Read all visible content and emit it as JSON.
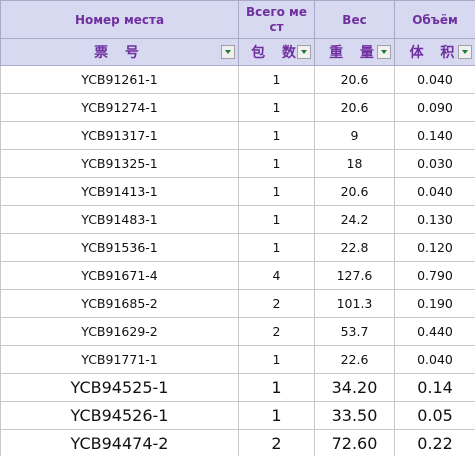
{
  "header": {
    "row1": [
      "Номер места",
      "Всего мест",
      "Вес",
      "Объём"
    ],
    "row2": [
      "票 号",
      "包 数",
      "重 量",
      "体 积"
    ]
  },
  "table": {
    "rows": [
      [
        "YCB91261-1",
        "1",
        "20.6",
        "0.040"
      ],
      [
        "YCB91274-1",
        "1",
        "20.6",
        "0.090"
      ],
      [
        "YCB91317-1",
        "1",
        "9",
        "0.140"
      ],
      [
        "YCB91325-1",
        "1",
        "18",
        "0.030"
      ],
      [
        "YCB91413-1",
        "1",
        "20.6",
        "0.040"
      ],
      [
        "YCB91483-1",
        "1",
        "24.2",
        "0.130"
      ],
      [
        "YCB91536-1",
        "1",
        "22.8",
        "0.120"
      ],
      [
        "YCB91671-4",
        "4",
        "127.6",
        "0.790"
      ],
      [
        "YCB91685-2",
        "2",
        "101.3",
        "0.190"
      ],
      [
        "YCB91629-2",
        "2",
        "53.7",
        "0.440"
      ],
      [
        "YCB91771-1",
        "1",
        "22.6",
        "0.040"
      ],
      [
        "YCB94525-1",
        "1",
        "34.20",
        "0.14"
      ],
      [
        "YCB94526-1",
        "1",
        "33.50",
        "0.05"
      ],
      [
        "YCB94474-2",
        "2",
        "72.60",
        "0.22"
      ]
    ]
  }
}
